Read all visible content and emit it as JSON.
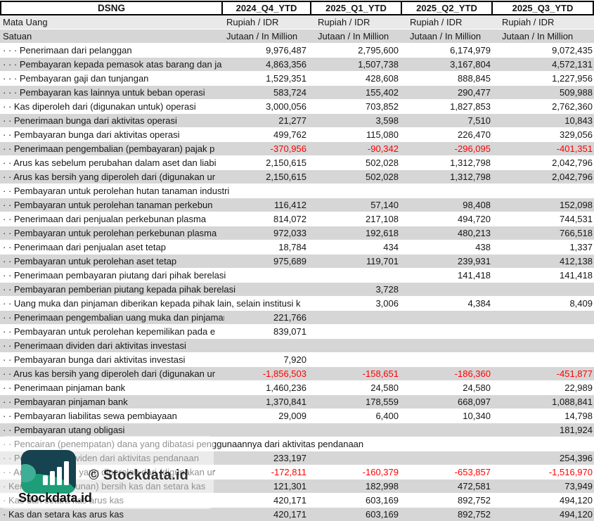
{
  "header": {
    "company": "DSNG",
    "periods": [
      "2024_Q4_YTD",
      "2025_Q1_YTD",
      "2025_Q2_YTD",
      "2025_Q3_YTD"
    ]
  },
  "meta_rows": [
    {
      "label": "Mata Uang",
      "values": [
        "Rupiah / IDR",
        "Rupiah / IDR",
        "Rupiah / IDR",
        "Rupiah / IDR"
      ]
    },
    {
      "label": "Satuan",
      "values": [
        "Jutaan / In Million",
        "Jutaan / In Million",
        "Jutaan / In Million",
        "Jutaan / In Million"
      ]
    }
  ],
  "rows": [
    {
      "label": "· · · Penerimaan dari pelanggan",
      "values": [
        "9,976,487",
        "2,795,600",
        "6,174,979",
        "9,072,435"
      ]
    },
    {
      "label": "· · · Pembayaran kepada pemasok atas barang dan ja",
      "values": [
        "4,863,356",
        "1,507,738",
        "3,167,804",
        "4,572,131"
      ]
    },
    {
      "label": "· · · Pembayaran gaji dan tunjangan",
      "values": [
        "1,529,351",
        "428,608",
        "888,845",
        "1,227,956"
      ]
    },
    {
      "label": "· · · Pembayaran kas lainnya untuk beban operasi",
      "values": [
        "583,724",
        "155,402",
        "290,477",
        "509,988"
      ]
    },
    {
      "label": "· · Kas diperoleh dari (digunakan untuk) operasi",
      "values": [
        "3,000,056",
        "703,852",
        "1,827,853",
        "2,762,360"
      ]
    },
    {
      "label": "· · Penerimaan bunga dari aktivitas operasi",
      "values": [
        "21,277",
        "3,598",
        "7,510",
        "10,843"
      ]
    },
    {
      "label": "· · Pembayaran bunga dari aktivitas operasi",
      "values": [
        "499,762",
        "115,080",
        "226,470",
        "329,056"
      ]
    },
    {
      "label": "· · Penerimaan pengembalian (pembayaran) pajak p",
      "values": [
        "-370,956",
        "-90,342",
        "-296,095",
        "-401,351"
      ],
      "neg": true
    },
    {
      "label": "· · Arus kas sebelum perubahan dalam aset dan liabi",
      "values": [
        "2,150,615",
        "502,028",
        "1,312,798",
        "2,042,796"
      ]
    },
    {
      "label": "· · Arus kas bersih yang diperoleh dari (digunakan ur",
      "values": [
        "2,150,615",
        "502,028",
        "1,312,798",
        "2,042,796"
      ]
    },
    {
      "label": "· · Pembayaran untuk perolehan hutan tanaman industri",
      "values": [
        "",
        "",
        "",
        ""
      ],
      "spill": true
    },
    {
      "label": "· · Pembayaran untuk perolehan tanaman perkebun",
      "values": [
        "116,412",
        "57,140",
        "98,408",
        "152,098"
      ]
    },
    {
      "label": "· · Penerimaan dari penjualan perkebunan plasma",
      "values": [
        "814,072",
        "217,108",
        "494,720",
        "744,531"
      ]
    },
    {
      "label": "· · Pembayaran untuk perolehan perkebunan plasma",
      "values": [
        "972,033",
        "192,618",
        "480,213",
        "766,518"
      ]
    },
    {
      "label": "· · Penerimaan dari penjualan aset tetap",
      "values": [
        "18,784",
        "434",
        "438",
        "1,337"
      ]
    },
    {
      "label": "· · Pembayaran untuk perolehan aset tetap",
      "values": [
        "975,689",
        "119,701",
        "239,931",
        "412,138"
      ]
    },
    {
      "label": "· · Penerimaan pembayaran piutang dari pihak berelasi",
      "values": [
        "",
        "",
        "141,418",
        "141,418"
      ],
      "spill": true
    },
    {
      "label": "· · Pembayaran pemberian piutang kepada pihak berelasi",
      "values": [
        "",
        "3,728",
        "",
        ""
      ],
      "spill": true
    },
    {
      "label": "· · Uang muka dan pinjaman diberikan kepada pihak lain, selain institusi k",
      "values": [
        "",
        "3,006",
        "4,384",
        "8,409"
      ],
      "spill": true
    },
    {
      "label": "· · Penerimaan pengembalian uang muka dan pinjaman",
      "values": [
        "221,766",
        "",
        "",
        ""
      ]
    },
    {
      "label": "· · Pembayaran untuk perolehan kepemilikan pada e",
      "values": [
        "839,071",
        "",
        "",
        ""
      ]
    },
    {
      "label": "· · Penerimaan dividen dari aktivitas investasi",
      "values": [
        "",
        "",
        "",
        ""
      ]
    },
    {
      "label": "· · Pembayaran bunga dari aktivitas investasi",
      "values": [
        "7,920",
        "",
        "",
        ""
      ]
    },
    {
      "label": "· · Arus kas bersih yang diperoleh dari (digunakan ur",
      "values": [
        "-1,856,503",
        "-158,651",
        "-186,360",
        "-451,877"
      ],
      "neg": true
    },
    {
      "label": "· · Penerimaan pinjaman bank",
      "values": [
        "1,460,236",
        "24,580",
        "24,580",
        "22,989"
      ]
    },
    {
      "label": "· · Pembayaran pinjaman bank",
      "values": [
        "1,370,841",
        "178,559",
        "668,097",
        "1,088,841"
      ]
    },
    {
      "label": "· · Pembayaran liabilitas sewa pembiayaan",
      "values": [
        "29,009",
        "6,400",
        "10,340",
        "14,798"
      ]
    },
    {
      "label": "· · Pembayaran utang obligasi",
      "values": [
        "",
        "",
        "",
        "181,924"
      ]
    },
    {
      "label": "· · Pencairan (penempatan) dana yang dibatasi penggunaannya dari aktivitas pendanaan",
      "values": [
        "",
        "",
        "",
        ""
      ],
      "spill": true
    },
    {
      "label": "· · Pembayaran dividen dari aktivitas pendanaan",
      "values": [
        "233,197",
        "",
        "",
        "254,396"
      ]
    },
    {
      "label": "· · Arus kas bersih yang diperoleh dari (digunakan ur",
      "values": [
        "-172,811",
        "-160,379",
        "-653,857",
        "-1,516,970"
      ],
      "neg": true
    },
    {
      "label": "· Kenaikan (penurunan) bersih kas dan setara kas",
      "values": [
        "121,301",
        "182,998",
        "472,581",
        "73,949"
      ]
    },
    {
      "label": "· Kas dan setara kas arus kas",
      "values": [
        "420,171",
        "603,169",
        "892,752",
        "494,120"
      ]
    },
    {
      "label": "· Kas dan setara kas arus kas",
      "values": [
        "420,171",
        "603,169",
        "892,752",
        "494,120"
      ]
    }
  ],
  "watermark": {
    "copyright": "© Stockdata.id",
    "brand": "Stockdata.id",
    "logo_icon": "bar-chart-icon"
  },
  "colors": {
    "negative": "#ff0000",
    "band_gray": "#d6d6d6",
    "meta_gray": "#e9e9e9",
    "logo_dark": "#17424f",
    "logo_green": "#1e9e78",
    "logo_accent": "#3fae96"
  }
}
